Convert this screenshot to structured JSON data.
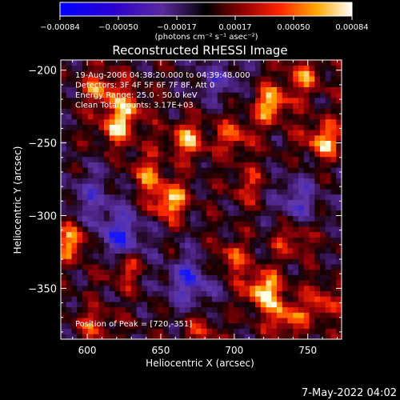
{
  "chart_data": {
    "type": "heatmap",
    "title": "Reconstructed RHESSI Image",
    "xlabel": "Heliocentric X (arcsec)",
    "ylabel": "Heliocentric Y (arcsec)",
    "xlim": [
      582,
      773
    ],
    "ylim": [
      -385,
      -193
    ],
    "xticks": [
      600,
      650,
      700,
      750
    ],
    "yticks": [
      -200,
      -250,
      -300,
      -350
    ],
    "colorbar": {
      "unit_label": "(photons cm⁻² s⁻¹ asec⁻²)",
      "range": [
        -0.00084,
        0.00084
      ],
      "ticks": [
        "-0.00084",
        "-0.00050",
        "-0.00017",
        "0.00017",
        "0.00050",
        "0.00084"
      ]
    },
    "annotations": [
      "19-Aug-2006 04:38:20.000 to 04:39:48.000",
      "Detectors: 3F 4F 5F 6F 7F 8F, Att 0",
      "Energy Range: 25.0 - 50.0 keV",
      "Clean     Total counts: 3.17E+03"
    ],
    "peak_label": "Position of Peak = [720,-351]",
    "blobs": [
      {
        "x": 610,
        "y": -212,
        "value": 0.00055
      },
      {
        "x": 628,
        "y": -225,
        "value": 0.0005
      },
      {
        "x": 620,
        "y": -240,
        "value": 0.0006
      },
      {
        "x": 668,
        "y": -248,
        "value": 0.00065
      },
      {
        "x": 725,
        "y": -223,
        "value": 0.00075
      },
      {
        "x": 748,
        "y": -205,
        "value": 0.0005
      },
      {
        "x": 760,
        "y": -248,
        "value": 0.0007
      },
      {
        "x": 700,
        "y": -245,
        "value": 0.0005
      },
      {
        "x": 655,
        "y": -290,
        "value": 0.0008
      },
      {
        "x": 640,
        "y": -270,
        "value": 0.0005
      },
      {
        "x": 590,
        "y": -318,
        "value": 0.0007
      },
      {
        "x": 625,
        "y": -335,
        "value": 0.00055
      },
      {
        "x": 698,
        "y": -330,
        "value": 0.0005
      },
      {
        "x": 720,
        "y": -351,
        "value": 0.00084
      },
      {
        "x": 740,
        "y": -315,
        "value": 0.0005
      },
      {
        "x": 735,
        "y": -370,
        "value": 0.0006
      },
      {
        "x": 760,
        "y": -360,
        "value": 0.0005
      },
      {
        "x": 710,
        "y": -280,
        "value": 0.0004
      },
      {
        "x": 605,
        "y": -375,
        "value": 0.0004
      },
      {
        "x": 678,
        "y": -380,
        "value": 0.00035
      }
    ],
    "negative_regions": [
      {
        "x": 622,
        "y": -315,
        "value": -0.0007
      },
      {
        "x": 670,
        "y": -345,
        "value": -0.0006
      },
      {
        "x": 742,
        "y": -290,
        "value": -0.0005
      },
      {
        "x": 603,
        "y": -285,
        "value": -0.0004
      },
      {
        "x": 690,
        "y": -205,
        "value": -0.0004
      }
    ]
  },
  "footer": {
    "timestamp": "7-May-2022 04:02"
  }
}
